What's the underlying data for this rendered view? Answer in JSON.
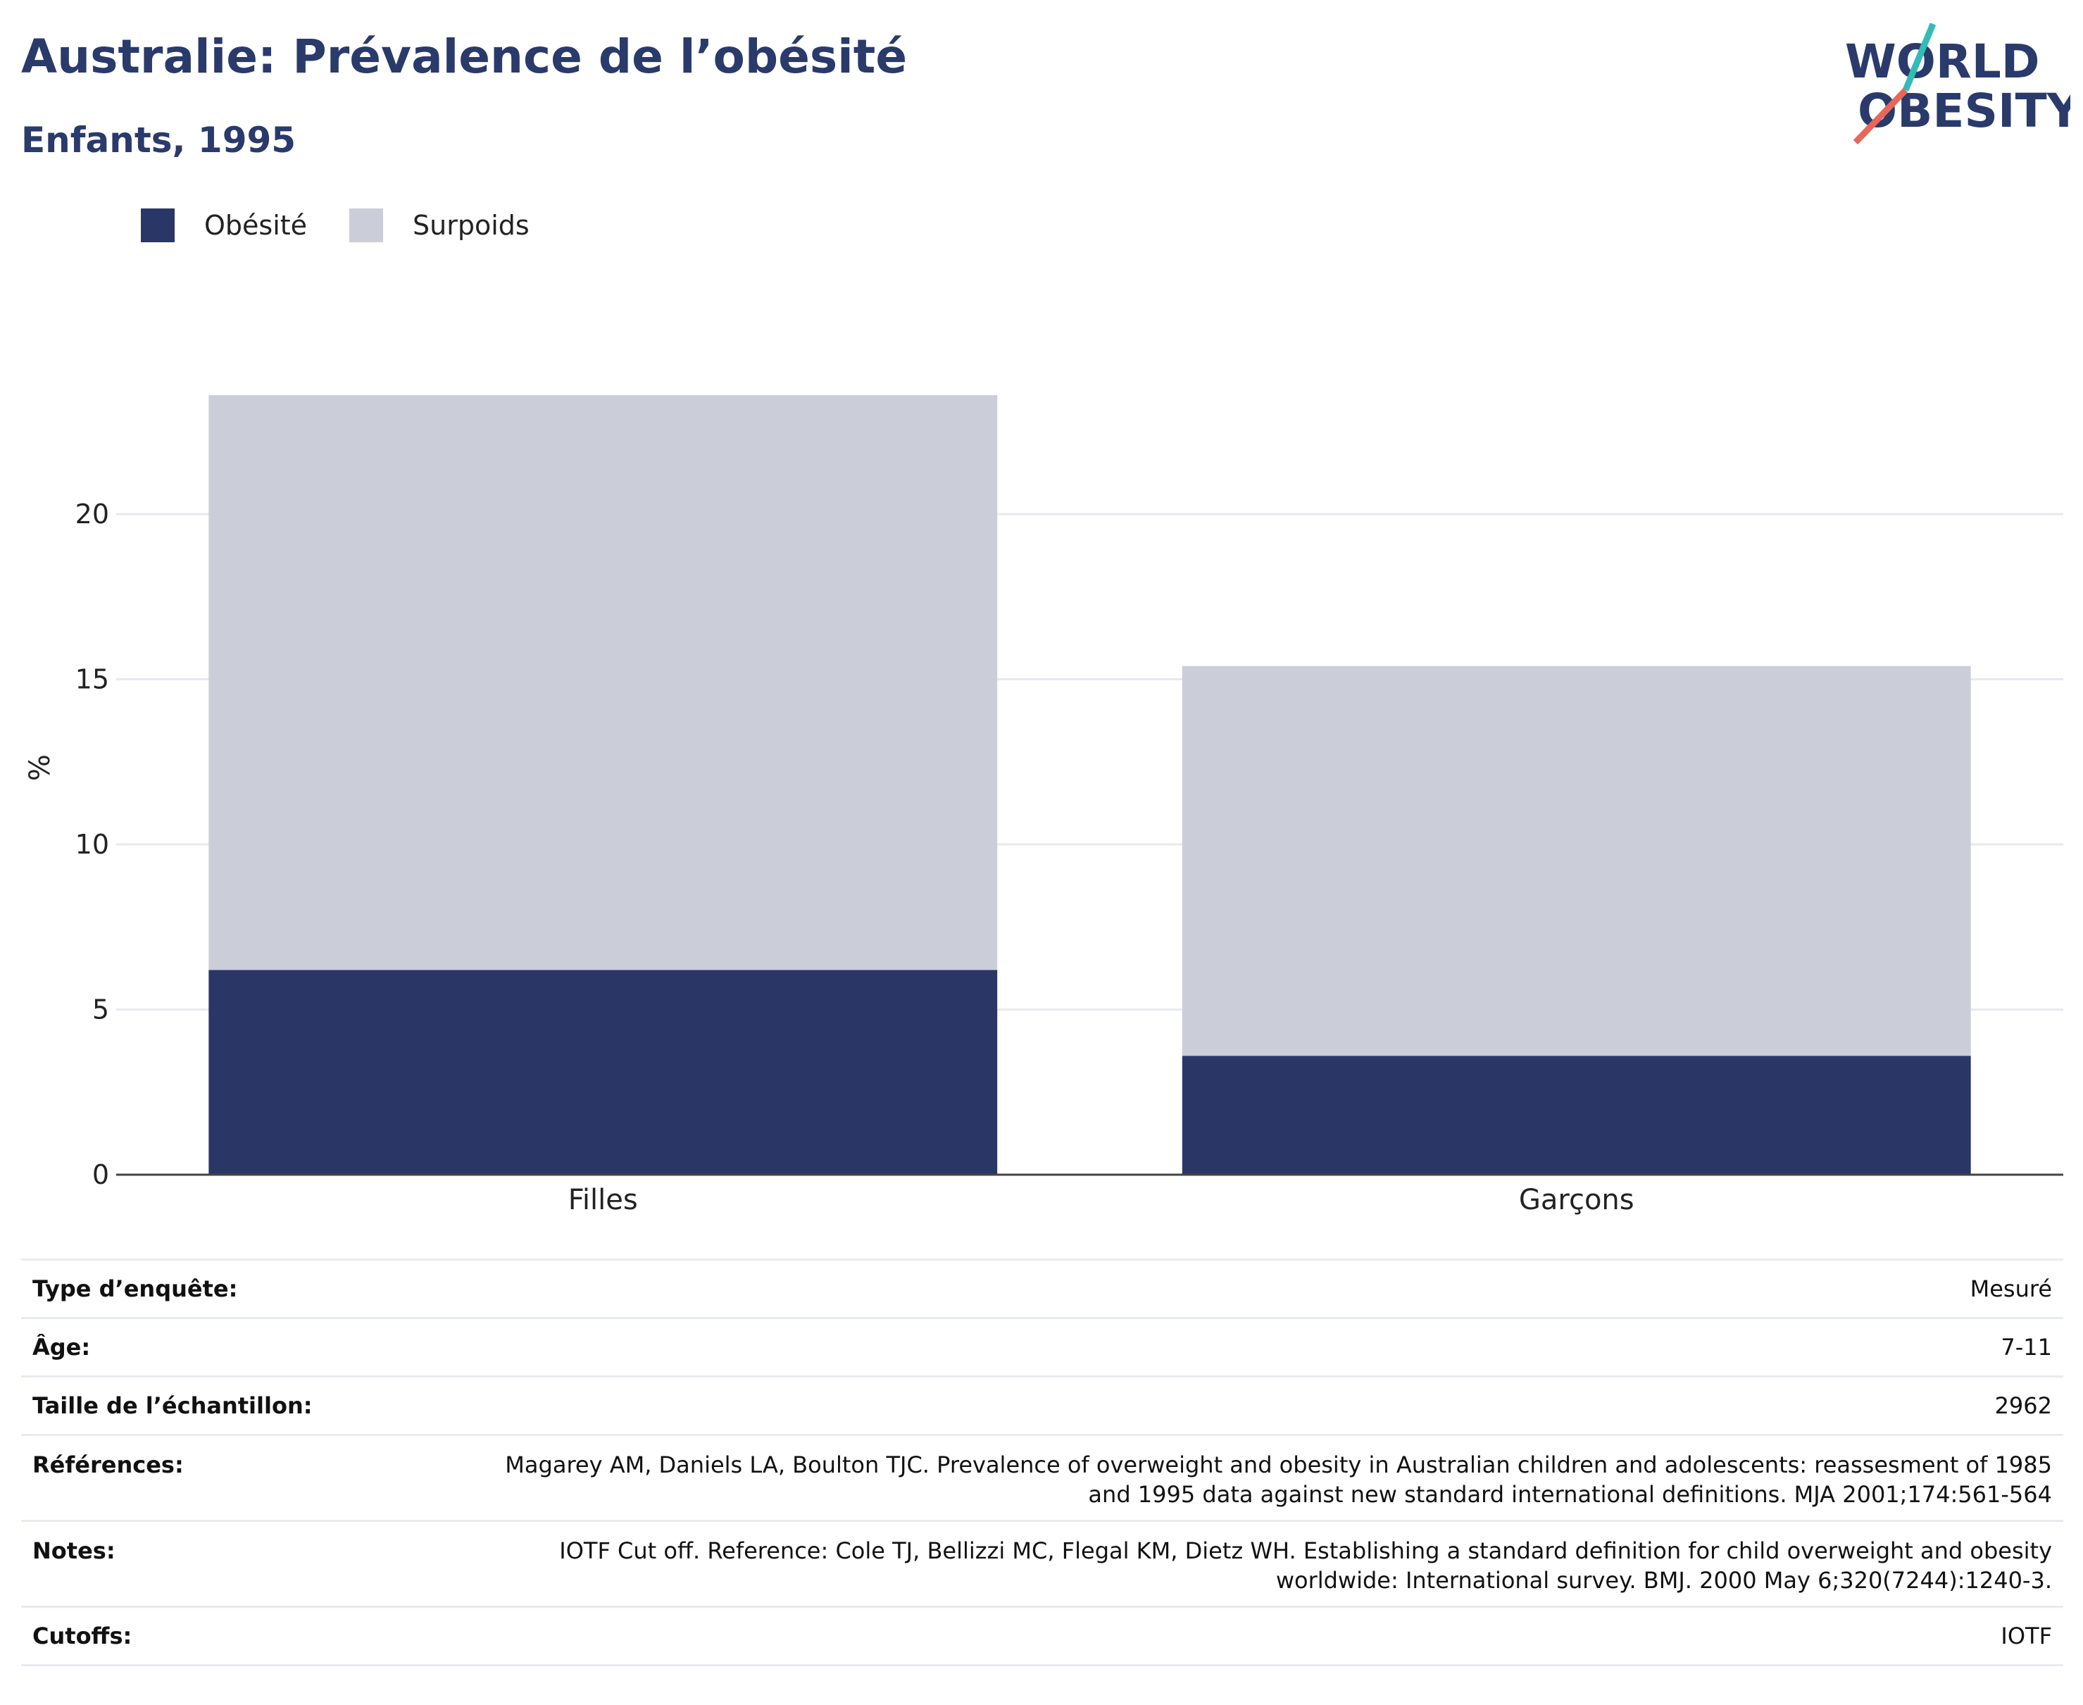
{
  "title": "Australie: Prévalence de l’obésité",
  "subtitle": "Enfants, 1995",
  "logo": {
    "line1": "WORLD",
    "line2": "OBESITY"
  },
  "colors": {
    "obesity": "#2a3665",
    "overweight": "#cbcdd9",
    "text_dark": "#293a6b",
    "logo_teal": "#33bbb5",
    "logo_red": "#e8665a"
  },
  "chart_data": {
    "type": "bar",
    "stacked": true,
    "categories": [
      "Filles",
      "Garçons"
    ],
    "series": [
      {
        "name": "Obésité",
        "values": [
          6.2,
          3.6
        ],
        "color": "#2a3665"
      },
      {
        "name": "Surpoids",
        "values": [
          17.4,
          11.8
        ],
        "color": "#cbcdd9"
      }
    ],
    "ylabel": "%",
    "ylim": [
      0,
      25
    ],
    "yticks": [
      0,
      5,
      10,
      15,
      20
    ],
    "grid": true,
    "legend_position": "top-left"
  },
  "info": [
    {
      "label": "Type d’enquête:",
      "value": "Mesuré"
    },
    {
      "label": "Âge:",
      "value": "7-11"
    },
    {
      "label": "Taille de l’échantillon:",
      "value": "2962"
    },
    {
      "label": "Références:",
      "value": "Magarey AM, Daniels LA, Boulton TJC. Prevalence of overweight and obesity in Australian children and adolescents: reassesment of 1985 and 1995 data against new standard international definitions. MJA 2001;174:561-564"
    },
    {
      "label": "Notes:",
      "value": "IOTF Cut off. Reference: Cole TJ, Bellizzi MC, Flegal KM, Dietz WH. Establishing a standard definition for child overweight and obesity worldwide: International survey. BMJ. 2000 May 6;320(7244):1240-3."
    },
    {
      "label": "Cutoffs:",
      "value": "IOTF"
    }
  ]
}
